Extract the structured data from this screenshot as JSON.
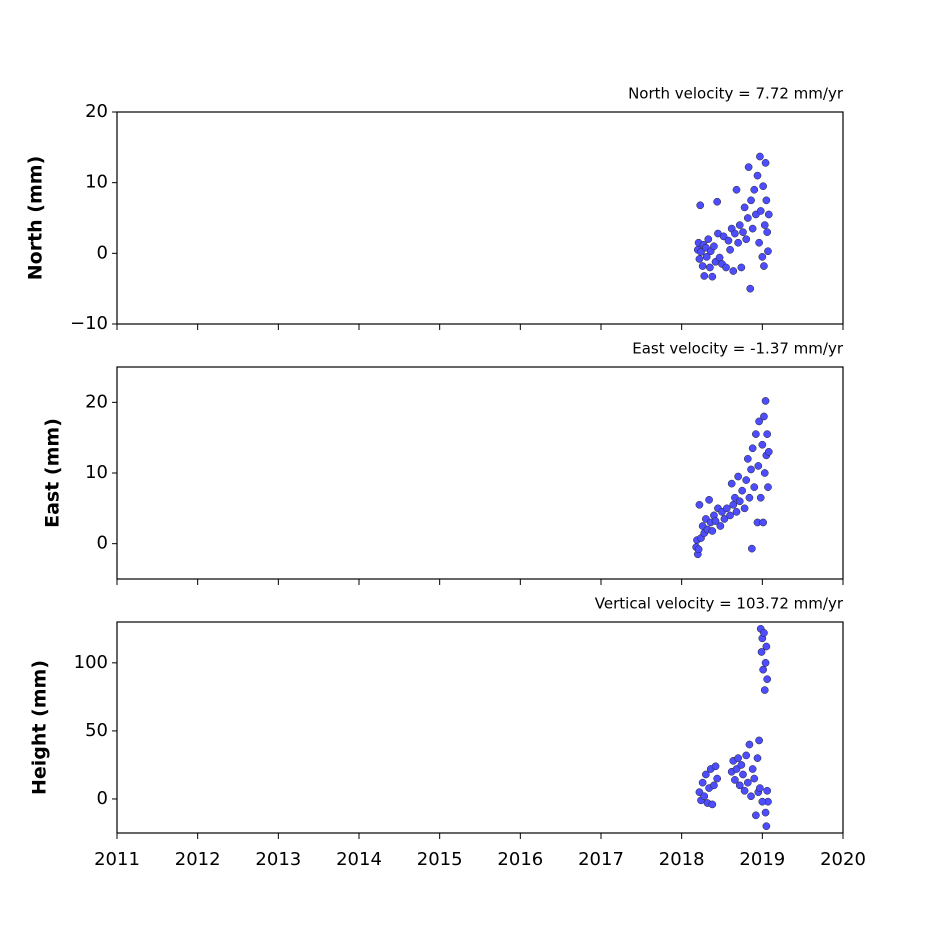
{
  "chart_data": [
    {
      "type": "scatter",
      "title": "North velocity = 7.72 mm/yr",
      "ylabel": "North (mm)",
      "color": "#4d4dff",
      "xlim": [
        2011,
        2020
      ],
      "xticks": [
        2011,
        2012,
        2013,
        2014,
        2015,
        2016,
        2017,
        2018,
        2019,
        2020
      ],
      "ylim": [
        -10,
        20
      ],
      "yticks": [
        {
          "value": -10,
          "label": "−10"
        },
        0,
        10,
        20
      ],
      "x": [
        2018.2,
        2018.21,
        2018.22,
        2018.23,
        2018.24,
        2018.26,
        2018.27,
        2018.28,
        2018.3,
        2018.31,
        2018.33,
        2018.35,
        2018.36,
        2018.38,
        2018.4,
        2018.42,
        2018.44,
        2018.45,
        2018.47,
        2018.5,
        2018.52,
        2018.55,
        2018.58,
        2018.6,
        2018.62,
        2018.64,
        2018.66,
        2018.68,
        2018.7,
        2018.72,
        2018.74,
        2018.76,
        2018.78,
        2018.8,
        2018.82,
        2018.83,
        2018.85,
        2018.86,
        2018.88,
        2018.9,
        2018.92,
        2018.94,
        2018.96,
        2018.97,
        2018.98,
        2019.0,
        2019.01,
        2019.02,
        2019.03,
        2019.04,
        2019.05,
        2019.06,
        2019.07,
        2019.08
      ],
      "y": [
        0.5,
        1.5,
        -0.8,
        6.8,
        0.2,
        -1.8,
        1.2,
        -3.2,
        0.8,
        -0.5,
        2.0,
        -2.0,
        0.3,
        -3.3,
        1.0,
        -1.2,
        7.3,
        2.8,
        -0.6,
        -1.5,
        2.4,
        -2.0,
        1.8,
        0.5,
        3.5,
        -2.5,
        2.8,
        9.0,
        1.5,
        4.0,
        -2.0,
        3.0,
        6.5,
        2.0,
        5.0,
        12.2,
        -5.0,
        7.5,
        3.5,
        9.0,
        5.5,
        11.0,
        1.5,
        13.7,
        6.0,
        -0.5,
        9.5,
        -1.8,
        4.0,
        12.8,
        7.5,
        3.0,
        0.3,
        5.5
      ]
    },
    {
      "type": "scatter",
      "title": "East velocity = -1.37 mm/yr",
      "ylabel": "East (mm)",
      "color": "#4d4dff",
      "xlim": [
        2011,
        2020
      ],
      "xticks": [
        2011,
        2012,
        2013,
        2014,
        2015,
        2016,
        2017,
        2018,
        2019,
        2020
      ],
      "ylim": [
        -5,
        25
      ],
      "yticks": [
        0,
        10,
        20
      ],
      "x": [
        2018.18,
        2018.19,
        2018.2,
        2018.21,
        2018.22,
        2018.24,
        2018.26,
        2018.28,
        2018.3,
        2018.32,
        2018.34,
        2018.36,
        2018.38,
        2018.4,
        2018.42,
        2018.45,
        2018.48,
        2018.5,
        2018.53,
        2018.56,
        2018.6,
        2018.62,
        2018.64,
        2018.66,
        2018.68,
        2018.7,
        2018.72,
        2018.75,
        2018.78,
        2018.8,
        2018.82,
        2018.84,
        2018.86,
        2018.87,
        2018.88,
        2018.9,
        2018.92,
        2018.94,
        2018.95,
        2018.96,
        2018.98,
        2019.0,
        2019.01,
        2019.02,
        2019.03,
        2019.04,
        2019.05,
        2019.06,
        2019.07,
        2019.08
      ],
      "y": [
        -0.5,
        0.5,
        -1.5,
        -0.8,
        5.5,
        0.8,
        2.5,
        1.5,
        3.5,
        2.0,
        6.2,
        3.0,
        1.8,
        4.0,
        3.2,
        5.0,
        2.5,
        4.5,
        3.5,
        5.0,
        4.0,
        8.5,
        5.5,
        6.5,
        4.5,
        9.5,
        6.0,
        7.5,
        5.0,
        9.0,
        12.0,
        6.5,
        10.5,
        -0.7,
        13.5,
        8.0,
        15.5,
        3.0,
        11.0,
        17.3,
        6.5,
        14.0,
        3.0,
        18.0,
        10.0,
        20.2,
        12.5,
        15.5,
        8.0,
        13.0
      ]
    },
    {
      "type": "scatter",
      "title": "Vertical velocity = 103.72 mm/yr",
      "ylabel": "Height (mm)",
      "color": "#4d4dff",
      "xlim": [
        2011,
        2020
      ],
      "xticks": [
        2011,
        2012,
        2013,
        2014,
        2015,
        2016,
        2017,
        2018,
        2019,
        2020
      ],
      "xticklabels": true,
      "ylim": [
        -25,
        130
      ],
      "yticks": [
        0,
        50,
        100
      ],
      "x": [
        2018.22,
        2018.24,
        2018.26,
        2018.28,
        2018.3,
        2018.32,
        2018.34,
        2018.36,
        2018.38,
        2018.4,
        2018.42,
        2018.44,
        2018.62,
        2018.64,
        2018.66,
        2018.68,
        2018.7,
        2018.72,
        2018.74,
        2018.76,
        2018.78,
        2018.8,
        2018.82,
        2018.84,
        2018.86,
        2018.88,
        2018.9,
        2018.92,
        2018.94,
        2018.95,
        2018.96,
        2018.97,
        2018.98,
        2018.99,
        2019.0,
        2019.01,
        2019.02,
        2019.03,
        2019.04,
        2019.05,
        2019.06,
        2019.07,
        2019.05,
        2019.04,
        2019.0,
        2019.06
      ],
      "y": [
        5,
        -1,
        12,
        2,
        18,
        -3,
        8,
        22,
        -4,
        10,
        24,
        15,
        20,
        28,
        14,
        22,
        30,
        10,
        25,
        18,
        6,
        32,
        12,
        40,
        2,
        22,
        15,
        -12,
        30,
        5,
        43,
        8,
        125,
        108,
        118,
        95,
        122,
        80,
        100,
        112,
        88,
        -2,
        -20,
        -10,
        -2,
        6
      ]
    }
  ]
}
